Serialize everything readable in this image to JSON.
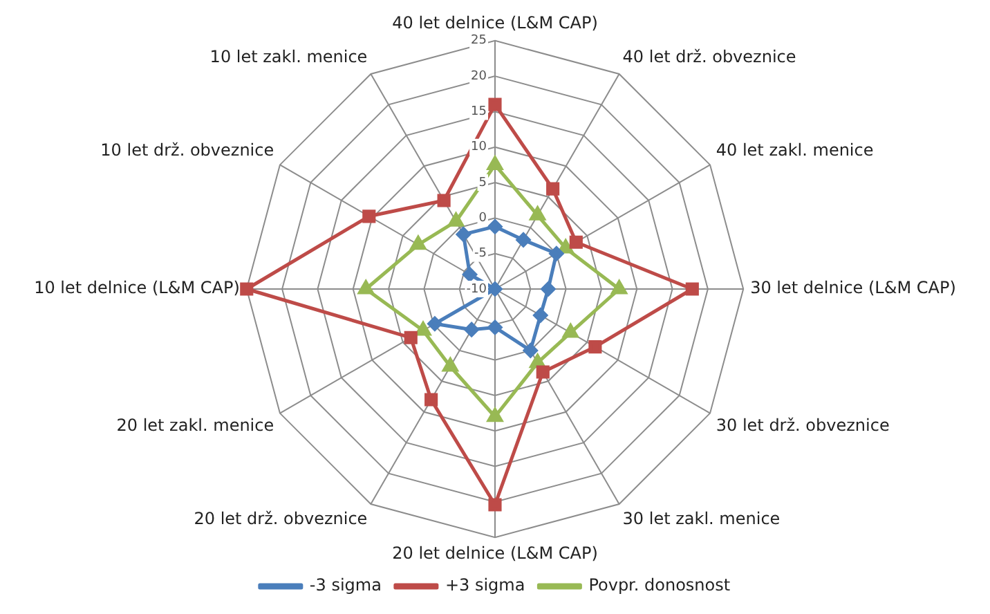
{
  "chart_data": {
    "type": "radar",
    "categories": [
      "40 let delnice (L&M CAP)",
      "40 let drž. obveznice",
      "40 let zakl. menice",
      "30 let delnice (L&M CAP)",
      "30 let drž. obveznice",
      "30 let zakl. menice",
      "20 let delnice (L&M CAP)",
      "20 let drž. obveznice",
      "20 let zakl. menice",
      "10 let delnice (L&M CAP)",
      "10 let drž. obveznice",
      "10 let zakl. menice"
    ],
    "series": [
      {
        "name": "-3 sigma",
        "color": "#4a7ebb",
        "marker": "diamond",
        "values": [
          -1.2,
          -2,
          0,
          -2.5,
          -2.6,
          0,
          -4.6,
          -3.4,
          -0.2,
          -10,
          -5.9,
          -1.1
        ]
      },
      {
        "name": "+3 sigma",
        "color": "#be4b48",
        "marker": "square",
        "values": [
          16,
          6.3,
          3.2,
          17.8,
          6.3,
          3.5,
          20.4,
          8,
          3.7,
          25,
          10.5,
          4.4
        ]
      },
      {
        "name": "Povpr. donosnost",
        "color": "#98b954",
        "marker": "triangle",
        "values": [
          7.5,
          2,
          1.5,
          7.5,
          2.3,
          2,
          8,
          2.6,
          1.7,
          8.2,
          2.5,
          1
        ]
      }
    ],
    "ylim": [
      -10,
      25
    ],
    "yticks": [
      -10,
      -5,
      0,
      5,
      10,
      15,
      20,
      25
    ],
    "grid": true,
    "legend": "bottom",
    "line_style": "solid"
  }
}
